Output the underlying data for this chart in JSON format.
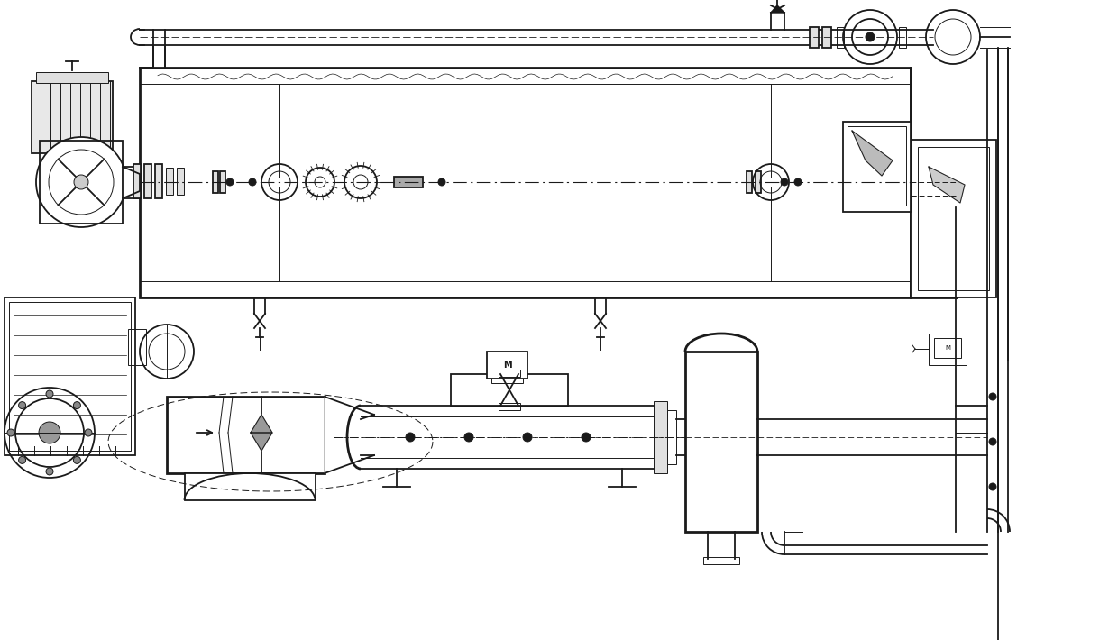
{
  "bg_color": "#ffffff",
  "lc": "#1a1a1a",
  "lw1": 0.7,
  "lw2": 1.3,
  "lw3": 2.0,
  "fig_width": 12.4,
  "fig_height": 7.1,
  "dpi": 100
}
